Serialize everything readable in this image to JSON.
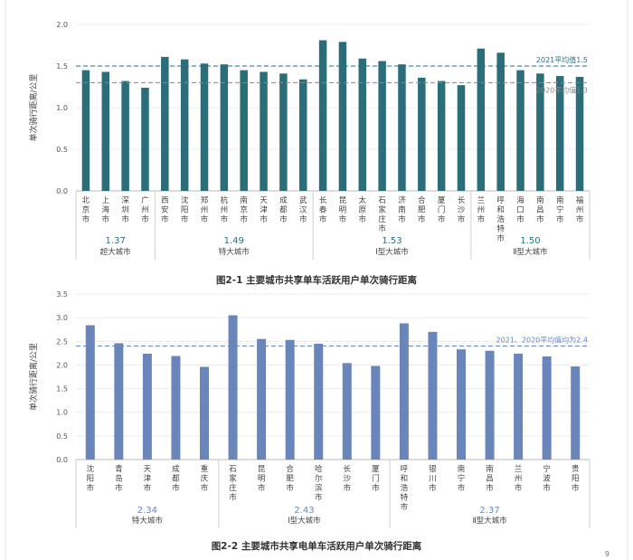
{
  "captions": {
    "fig1": "图2-1 主要城市共享单车活跃用户单次骑行距离",
    "fig2": "图2-2 主要城市共享电单车活跃用户单次骑行距离"
  },
  "page_number": "9",
  "chart_data": [
    {
      "type": "bar",
      "title": "图2-1 主要城市共享单车活跃用户单次骑行距离",
      "ylabel": "单次骑行距离/公里",
      "ylim": [
        0,
        2.0
      ],
      "yticks": [
        "0.0",
        "0.5",
        "1.0",
        "1.5",
        "2.0"
      ],
      "bar_color": "#2b6e7a",
      "categories": [
        "北京市",
        "上海市",
        "深圳市",
        "广州市",
        "西安市",
        "沈阳市",
        "郑州市",
        "杭州市",
        "南京市",
        "天津市",
        "成都市",
        "武汉市",
        "长春市",
        "昆明市",
        "太原市",
        "石家庄市",
        "济南市",
        "合肥市",
        "厦门市",
        "长沙市",
        "兰州市",
        "呼和浩特市",
        "海口市",
        "南昌市",
        "南宁市",
        "福州市"
      ],
      "values": [
        1.45,
        1.43,
        1.32,
        1.24,
        1.61,
        1.58,
        1.53,
        1.52,
        1.45,
        1.43,
        1.41,
        1.34,
        1.81,
        1.79,
        1.59,
        1.56,
        1.52,
        1.36,
        1.32,
        1.27,
        1.71,
        1.66,
        1.45,
        1.41,
        1.38,
        1.37
      ],
      "groups": [
        {
          "name": "超大城市",
          "avg": "1.37",
          "start": 0,
          "end": 3
        },
        {
          "name": "特大城市",
          "avg": "1.49",
          "start": 4,
          "end": 11
        },
        {
          "name": "Ⅰ型大城市",
          "avg": "1.53",
          "start": 12,
          "end": 19
        },
        {
          "name": "Ⅱ型大城市",
          "avg": "1.50",
          "start": 20,
          "end": 25
        }
      ],
      "reference_lines": [
        {
          "value": 1.5,
          "label": "2021平均值1.5",
          "color": "#2b6e7a"
        },
        {
          "value": 1.3,
          "label": "2020平均值1.3",
          "color": "#888888"
        }
      ]
    },
    {
      "type": "bar",
      "title": "图2-2 主要城市共享电单车活跃用户单次骑行距离",
      "ylabel": "单次骑行距离/公里",
      "ylim": [
        0,
        3.5
      ],
      "yticks": [
        "0.0",
        "0.5",
        "1.0",
        "1.5",
        "2.0",
        "2.5",
        "3.0",
        "3.5"
      ],
      "bar_color": "#6a85ba",
      "categories": [
        "沈阳市",
        "青岛市",
        "天津市",
        "成都市",
        "重庆市",
        "石家庄市",
        "昆明市",
        "合肥市",
        "哈尔滨市",
        "长沙市",
        "厦门市",
        "呼和浩特市",
        "银川市",
        "南宁市",
        "南昌市",
        "兰州市",
        "宁波市",
        "贵阳市"
      ],
      "values": [
        2.84,
        2.46,
        2.24,
        2.19,
        1.96,
        3.05,
        2.55,
        2.53,
        2.45,
        2.04,
        1.98,
        2.88,
        2.7,
        2.33,
        2.3,
        2.24,
        2.18,
        1.97
      ],
      "groups": [
        {
          "name": "特大城市",
          "avg": "2.34",
          "start": 0,
          "end": 4
        },
        {
          "name": "Ⅰ型大城市",
          "avg": "2.43",
          "start": 5,
          "end": 10
        },
        {
          "name": "Ⅱ型大城市",
          "avg": "2.37",
          "start": 11,
          "end": 17
        }
      ],
      "reference_lines": [
        {
          "value": 2.4,
          "label": "2021、2020平均值均为2.4",
          "color": "#6a85ba"
        }
      ]
    }
  ]
}
